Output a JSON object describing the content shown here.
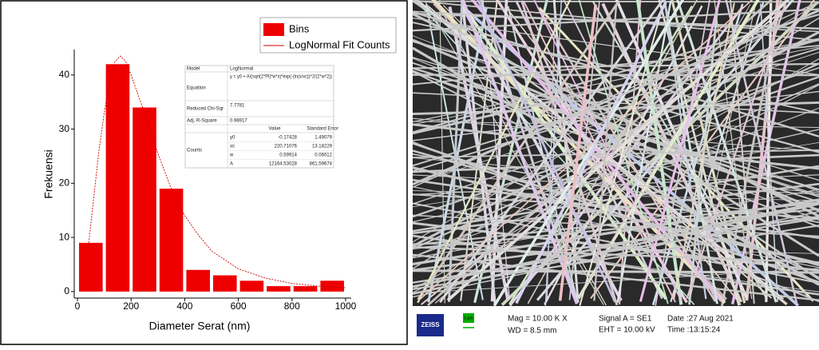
{
  "chart_data": {
    "type": "histogram",
    "bins": [
      0,
      100,
      200,
      300,
      400,
      500,
      600,
      700,
      800,
      900,
      1000
    ],
    "values": [
      9,
      42,
      34,
      19,
      4,
      3,
      2,
      1,
      1,
      2
    ],
    "name": "Bins",
    "color": "#ee0000",
    "fit": {
      "name": "LogNormal Fit Counts",
      "color": "#cc0000",
      "x": [
        40,
        60,
        80,
        100,
        120,
        140,
        160,
        180,
        200,
        250,
        300,
        350,
        400,
        450,
        500,
        600,
        700,
        800,
        900,
        1000
      ],
      "values": [
        8,
        17,
        26,
        33,
        39,
        42.5,
        43.5,
        42.5,
        40,
        33,
        25.5,
        19,
        14,
        10.5,
        7.5,
        4.2,
        2.5,
        1.5,
        1,
        0.7
      ]
    },
    "xlabel": "Diameter Serat (nm)",
    "ylabel": "Frekuensi",
    "xlim": [
      -12,
      1021
    ],
    "ylim": [
      -1.2,
      44.7
    ],
    "xticks": [
      0,
      200,
      400,
      600,
      800,
      1000
    ],
    "yticks": [
      0,
      10,
      20,
      30,
      40
    ]
  },
  "fit_table": {
    "model_label": "Model",
    "model": "LogNormal",
    "equation_label": "Equation",
    "equation": "y = y0 + A/(sqrt(2*PI)*w*x)*exp(-(ln(x/xc))^2/(2*w^2))",
    "chi_label": "Reduced Chi-Sqr",
    "chi": "7.7781",
    "r2_label": "Adj. R-Square",
    "r2": "0.98917",
    "value_header": "Value",
    "error_header": "Standard Error",
    "group_label": "Counts",
    "rows": [
      [
        "y0",
        "-0.17428",
        "1.49079"
      ],
      [
        "xc",
        "220.71076",
        "13.18229"
      ],
      [
        "w",
        "0.59914",
        "0.06012"
      ],
      [
        "A",
        "12164.53028",
        "861.59674"
      ]
    ]
  },
  "sem_info": {
    "brand": "ZEISS",
    "scale": "1 µm",
    "mag": "Mag = 10.00 K X",
    "wd": "WD = 8.5 mm",
    "signal": "Signal A = SE1",
    "eht": "EHT = 10.00 kV",
    "date": "Date :27 Aug 2021",
    "time": "Time :13:15:24"
  }
}
